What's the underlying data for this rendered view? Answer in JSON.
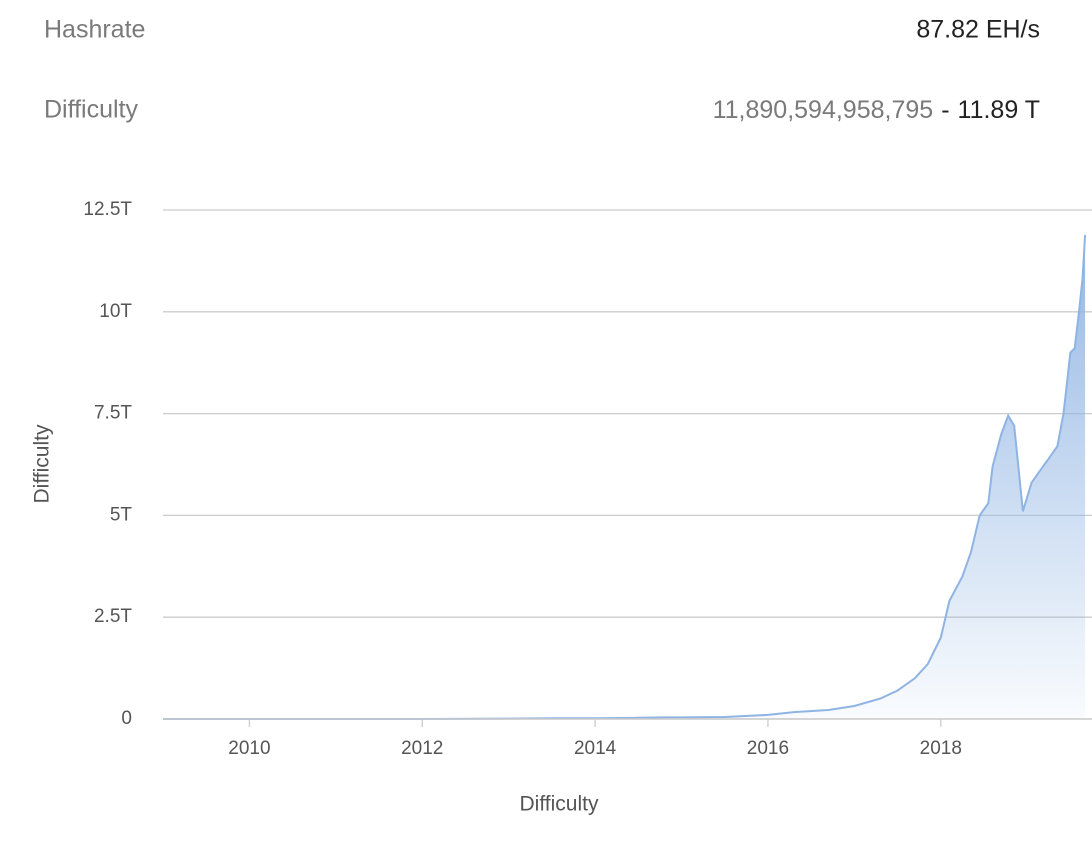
{
  "stats": {
    "hashrate_label": "Hashrate",
    "hashrate_value": "87.82 EH/s",
    "difficulty_label": "Difficulty",
    "difficulty_raw": "11,890,594,958,795",
    "separator": "-",
    "difficulty_short": "11.89 T"
  },
  "chart_data": {
    "type": "area",
    "y_label": "Difficulty",
    "x_label": "Difficulty",
    "x": [
      2009,
      2010,
      2011,
      2012,
      2013,
      2013.5,
      2014,
      2014.5,
      2014.8,
      2015,
      2015.5,
      2016,
      2016.3,
      2016.7,
      2017,
      2017.3,
      2017.5,
      2017.7,
      2017.85,
      2018,
      2018.1,
      2018.25,
      2018.35,
      2018.45,
      2018.55,
      2018.6,
      2018.7,
      2018.78,
      2018.85,
      2018.95,
      2019.05,
      2019.15,
      2019.25,
      2019.35,
      2019.42,
      2019.5,
      2019.55,
      2019.6,
      2019.64,
      2019.67
    ],
    "series": [
      {
        "name": "Difficulty",
        "color": "#8fb4e3",
        "values": [
          0,
          0,
          0,
          0,
          0.01,
          0.02,
          0.02,
          0.03,
          0.04,
          0.04,
          0.05,
          0.1,
          0.17,
          0.22,
          0.32,
          0.5,
          0.7,
          1.0,
          1.35,
          2.0,
          2.9,
          3.5,
          4.1,
          5.0,
          5.3,
          6.2,
          7.0,
          7.45,
          7.2,
          5.1,
          5.8,
          6.1,
          6.4,
          6.7,
          7.5,
          9.0,
          9.1,
          10.0,
          10.8,
          11.89
        ]
      }
    ],
    "xlim": [
      2009,
      2019.75
    ],
    "xticks": [
      2010,
      2012,
      2014,
      2016,
      2018
    ],
    "ylim": [
      0,
      12.5
    ],
    "yticks": [
      0,
      {
        "value": 2.5,
        "label": "2.5T"
      },
      {
        "value": 5,
        "label": "5T"
      },
      {
        "value": 7.5,
        "label": "7.5T"
      },
      {
        "value": 10,
        "label": "10T"
      },
      {
        "value": 12.5,
        "label": "12.5T"
      }
    ],
    "grid": true
  }
}
